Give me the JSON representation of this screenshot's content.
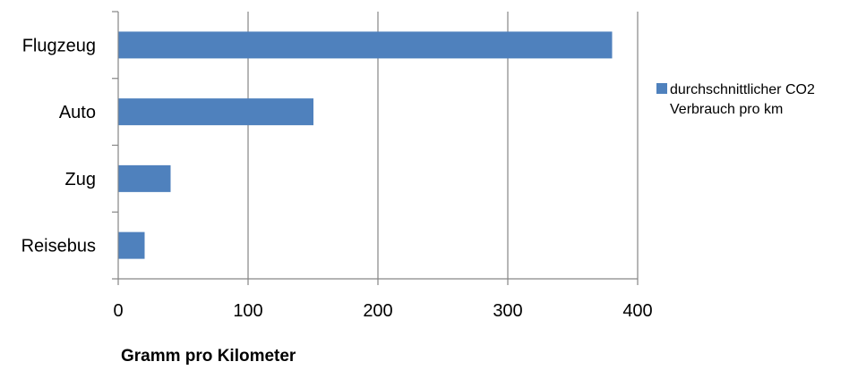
{
  "chart_data": {
    "type": "bar",
    "orientation": "horizontal",
    "categories": [
      "Flugzeug",
      "Auto",
      "Zug",
      "Reisebus"
    ],
    "series": [
      {
        "name": "durchschnittlicher CO2 Verbrauch pro km",
        "values": [
          380,
          150,
          40,
          20
        ],
        "color": "#4F81BD"
      }
    ],
    "title": "",
    "xlabel": "Gramm pro Kilometer",
    "ylabel": "",
    "xlim": [
      0,
      400
    ],
    "xticks": [
      "0",
      "100",
      "200",
      "300",
      "400"
    ],
    "grid": "vertical",
    "legend": {
      "placement": "right",
      "lines": [
        "durchschnittlicher CO2",
        "Verbrauch pro km"
      ]
    },
    "colors": {
      "bar": "#4F81BD",
      "grid": "#868686",
      "axis": "#868686",
      "text": "#000000"
    }
  }
}
